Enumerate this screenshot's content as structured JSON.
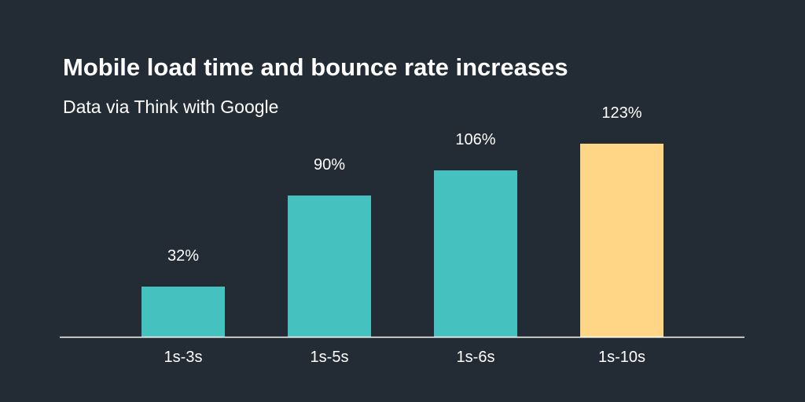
{
  "header": {
    "title": "Mobile load time and bounce rate increases",
    "subtitle": "Data via Think with Google"
  },
  "colors": {
    "background": "#232b35",
    "bar_default": "#45c1bf",
    "bar_highlight": "#ffd586",
    "axis": "#ffffff",
    "text": "#ffffff"
  },
  "chart_data": {
    "type": "bar",
    "title": "Mobile load time and bounce rate increases",
    "subtitle": "Data via Think with Google",
    "categories": [
      "1s-3s",
      "1s-5s",
      "1s-6s",
      "1s-10s"
    ],
    "values": [
      32,
      90,
      106,
      123
    ],
    "value_labels": [
      "32%",
      "90%",
      "106%",
      "123%"
    ],
    "highlight_index": 3,
    "ylim": [
      0,
      123
    ],
    "grid": false,
    "legend": "none"
  }
}
